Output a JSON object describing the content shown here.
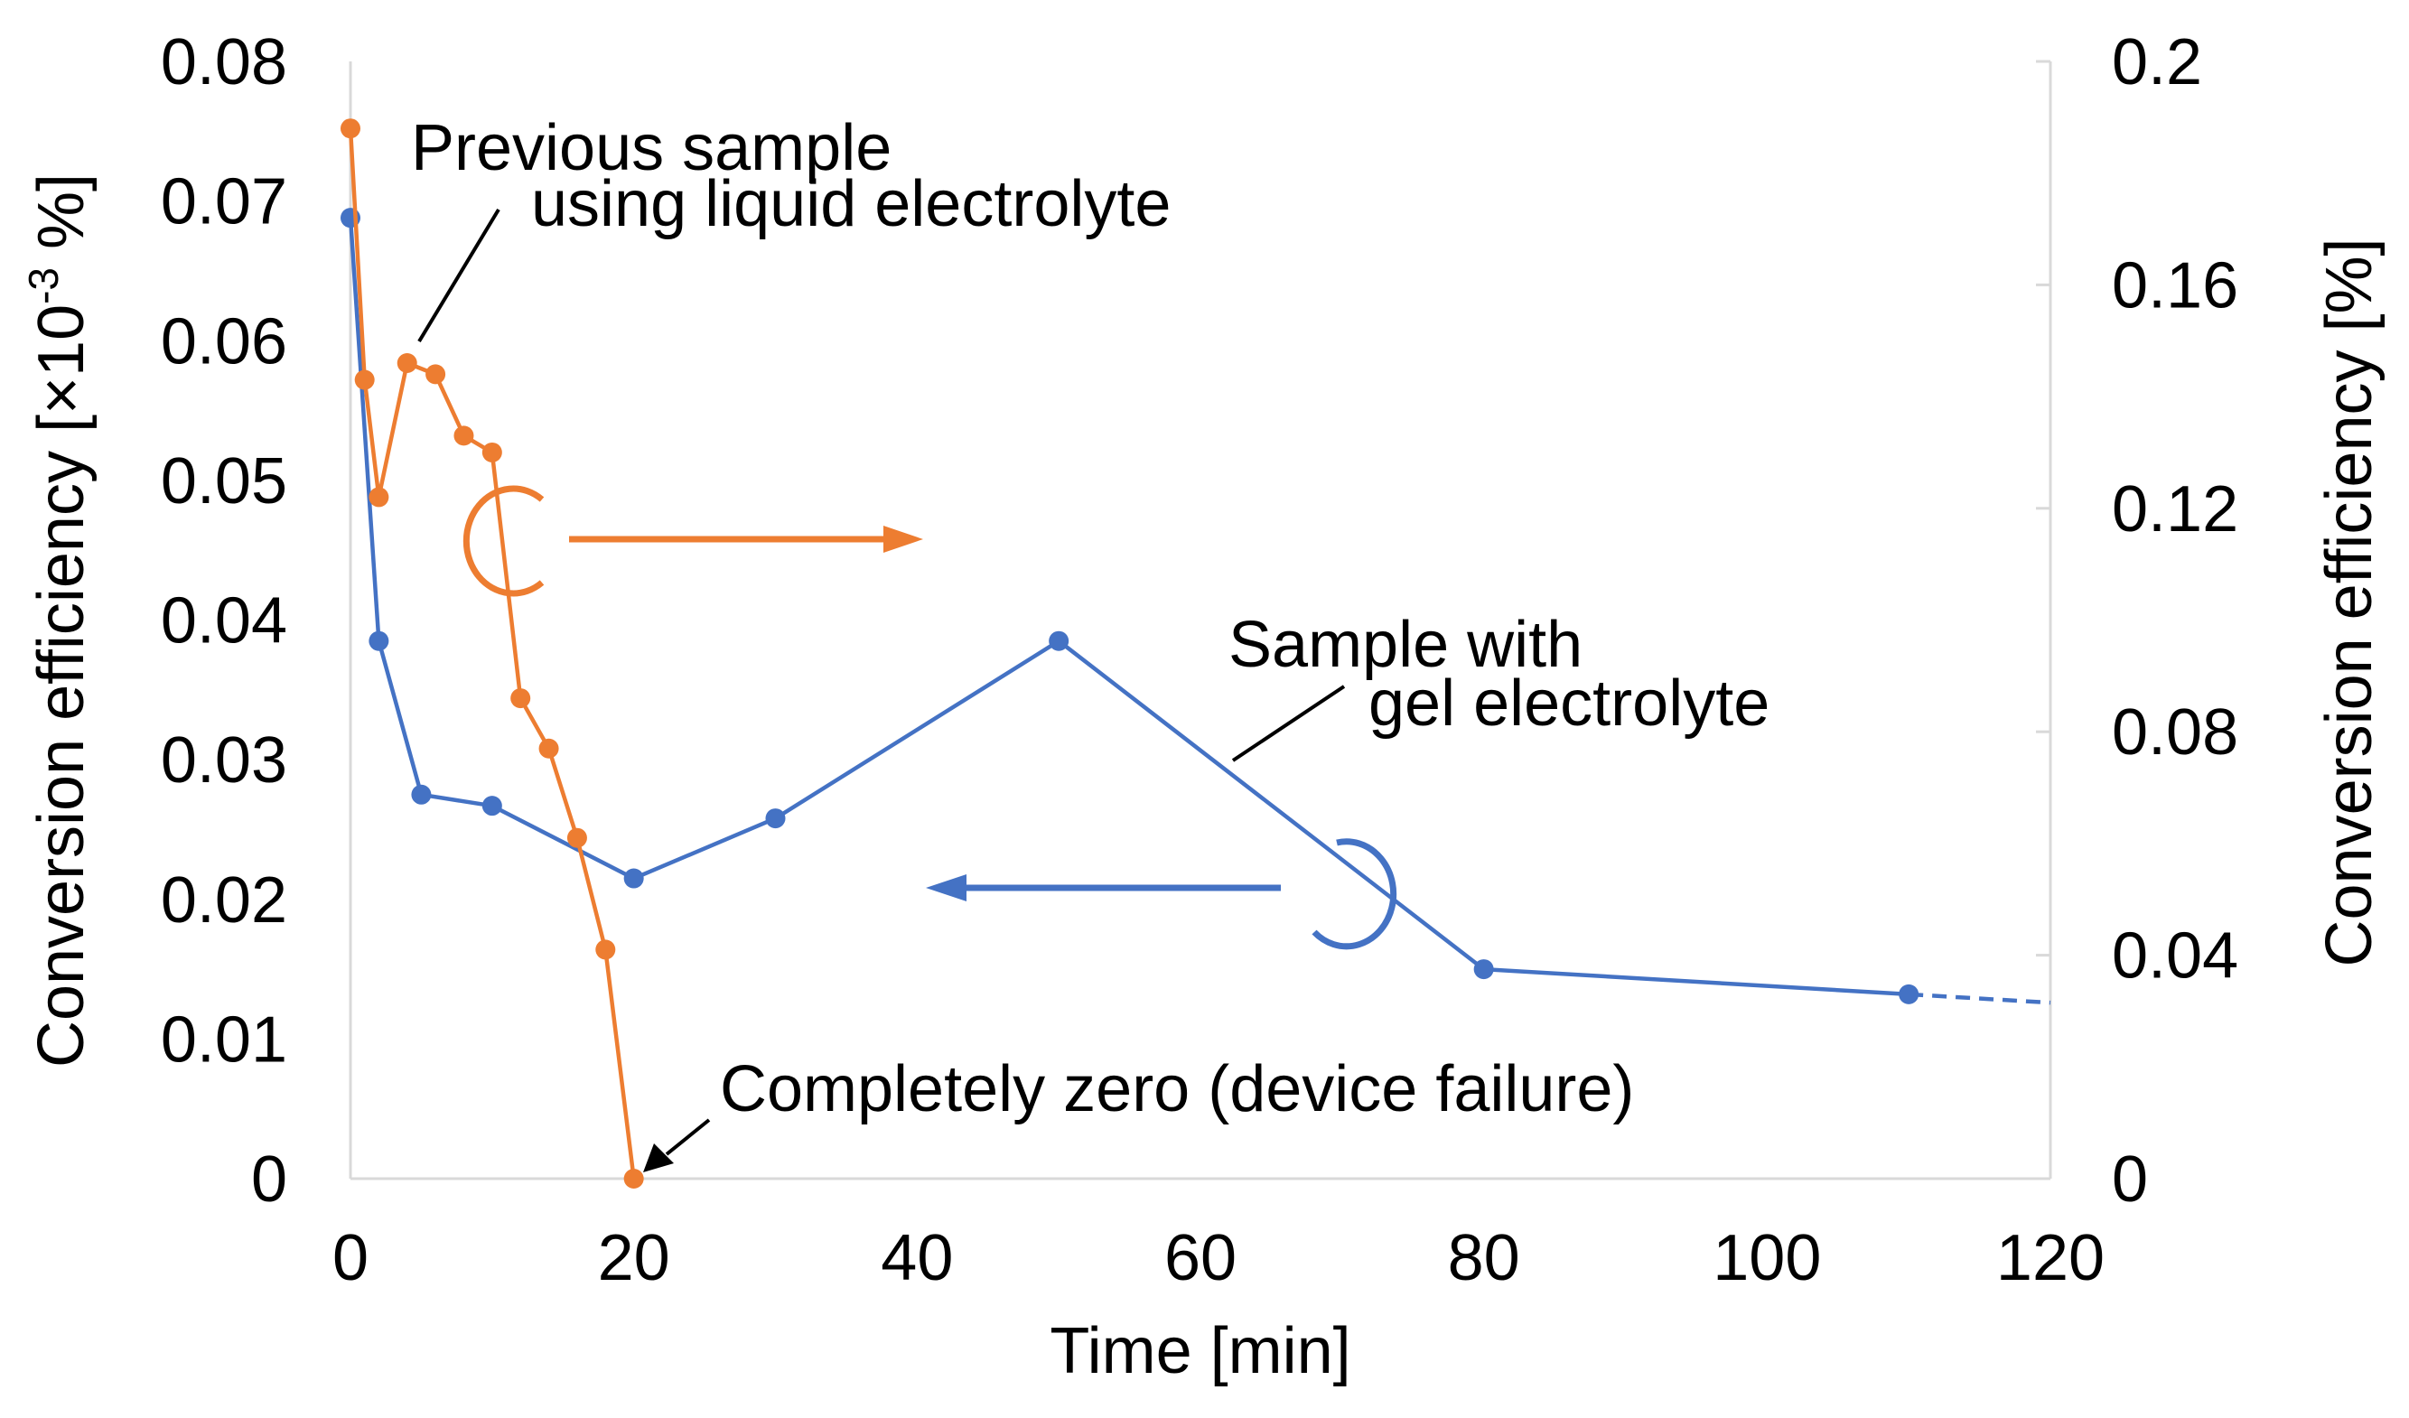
{
  "chart_data": {
    "type": "line",
    "xlabel": "Time [min]",
    "ylabel_left": "Conversion efficiency [×10",
    "ylabel_left_exp": "-3",
    "ylabel_left_tail": " %]",
    "ylabel_right": "Conversion efficiency [%]",
    "xlim": [
      0,
      120
    ],
    "ylim_left": [
      0,
      0.08
    ],
    "ylim_right": [
      0,
      0.2
    ],
    "x_ticks": [
      "0",
      "20",
      "40",
      "60",
      "80",
      "100",
      "120"
    ],
    "y_left_ticks": [
      "0",
      "0.01",
      "0.02",
      "0.03",
      "0.04",
      "0.05",
      "0.06",
      "0.07",
      "0.08"
    ],
    "y_right_ticks": [
      "0",
      "0.04",
      "0.08",
      "0.12",
      "0.16",
      "0.2"
    ],
    "grid": false,
    "series": [
      {
        "name": "Sample with gel electrolyte",
        "axis": "left",
        "color": "#4472c4",
        "x": [
          0,
          2,
          5,
          10,
          20,
          30,
          50,
          80,
          110
        ],
        "y": [
          0.0688,
          0.0385,
          0.0275,
          0.0267,
          0.0215,
          0.0258,
          0.0385,
          0.015,
          0.0132
        ],
        "extension": {
          "x": [
            110,
            120
          ],
          "y": [
            0.0132,
            0.0126
          ],
          "style": "dashed"
        }
      },
      {
        "name": "Previous sample using liquid electrolyte",
        "axis": "right",
        "color": "#ed7d31",
        "x": [
          0,
          1,
          2,
          4,
          6,
          8,
          10,
          12,
          14,
          16,
          18,
          20
        ],
        "y": [
          0.188,
          0.143,
          0.122,
          0.146,
          0.144,
          0.133,
          0.13,
          0.086,
          0.077,
          0.061,
          0.041,
          0.0
        ]
      }
    ],
    "annotations": {
      "liquid_line1": "Previous sample",
      "liquid_line2": "using liquid electrolyte",
      "gel_line1": "Sample with",
      "gel_line2": "gel electrolyte",
      "failure": "Completely zero (device failure)"
    }
  }
}
